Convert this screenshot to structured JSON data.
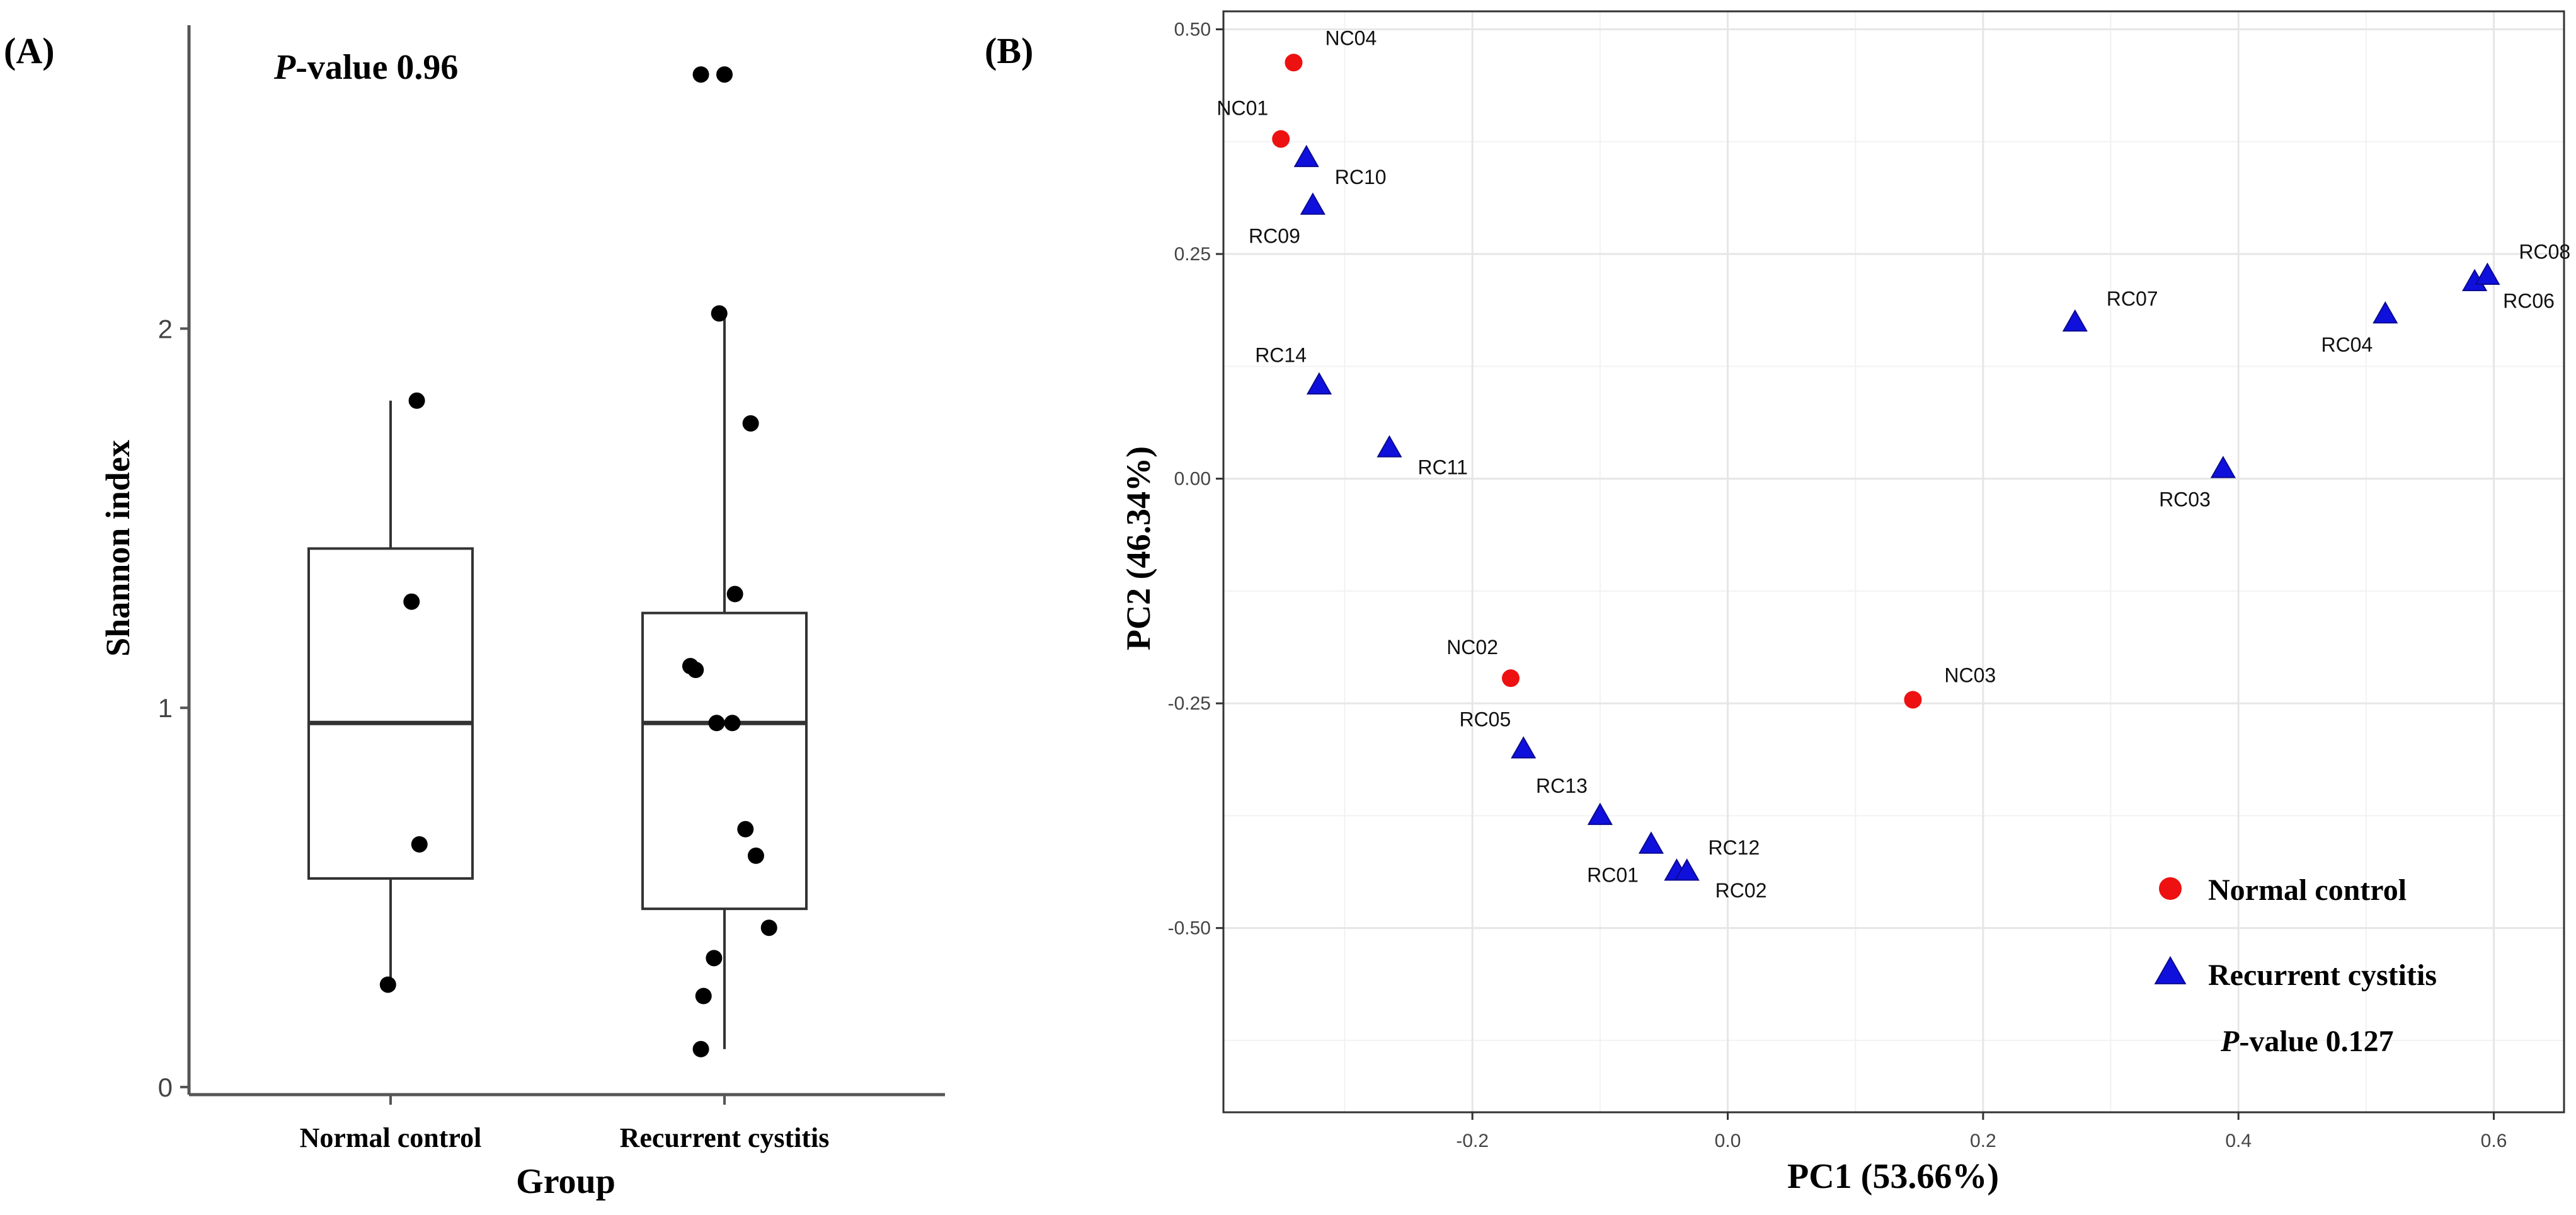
{
  "chart_data": [
    {
      "panel_label": "(A)",
      "type": "box",
      "annotation": {
        "italic": "P",
        "rest": "-value 0.96"
      },
      "xlabel": "Group",
      "ylabel": "Shannon index",
      "categories": [
        "Normal control",
        "Recurrent cystitis"
      ],
      "y_ticks": [
        0,
        1,
        2
      ],
      "ylim": [
        -0.02,
        2.8
      ],
      "boxes": [
        {
          "category": "Normal control",
          "whisker_low": 0.27,
          "q1": 0.55,
          "median": 0.96,
          "q3": 1.42,
          "whisker_high": 1.81
        },
        {
          "category": "Recurrent cystitis",
          "whisker_low": 0.1,
          "q1": 0.47,
          "median": 0.96,
          "q3": 1.25,
          "whisker_high": 2.05
        }
      ],
      "points": [
        {
          "category": "Normal control",
          "jitter": 0.1,
          "y": 1.81
        },
        {
          "category": "Normal control",
          "jitter": 0.08,
          "y": 1.28
        },
        {
          "category": "Normal control",
          "jitter": 0.11,
          "y": 0.64
        },
        {
          "category": "Normal control",
          "jitter": -0.01,
          "y": 0.27
        },
        {
          "category": "Recurrent cystitis",
          "jitter": -0.09,
          "y": 2.67
        },
        {
          "category": "Recurrent cystitis",
          "jitter": 0.0,
          "y": 2.67
        },
        {
          "category": "Recurrent cystitis",
          "jitter": -0.02,
          "y": 2.04
        },
        {
          "category": "Recurrent cystitis",
          "jitter": 0.1,
          "y": 1.75
        },
        {
          "category": "Recurrent cystitis",
          "jitter": 0.04,
          "y": 1.3
        },
        {
          "category": "Recurrent cystitis",
          "jitter": -0.13,
          "y": 1.11
        },
        {
          "category": "Recurrent cystitis",
          "jitter": -0.11,
          "y": 1.1
        },
        {
          "category": "Recurrent cystitis",
          "jitter": -0.03,
          "y": 0.96
        },
        {
          "category": "Recurrent cystitis",
          "jitter": 0.03,
          "y": 0.96
        },
        {
          "category": "Recurrent cystitis",
          "jitter": 0.08,
          "y": 0.68
        },
        {
          "category": "Recurrent cystitis",
          "jitter": 0.12,
          "y": 0.61
        },
        {
          "category": "Recurrent cystitis",
          "jitter": 0.17,
          "y": 0.42
        },
        {
          "category": "Recurrent cystitis",
          "jitter": -0.04,
          "y": 0.34
        },
        {
          "category": "Recurrent cystitis",
          "jitter": -0.08,
          "y": 0.24
        },
        {
          "category": "Recurrent cystitis",
          "jitter": -0.09,
          "y": 0.1
        }
      ]
    },
    {
      "panel_label": "(B)",
      "type": "scatter",
      "xlabel": "PC1 (53.66%)",
      "ylabel": "PC2 (46.34%)",
      "xlim": [
        -0.395,
        0.655
      ],
      "ylim": [
        -0.705,
        0.52
      ],
      "x_ticks": [
        -0.2,
        0.0,
        0.2,
        0.4,
        0.6
      ],
      "x_tick_labels": [
        "-0.2",
        "0.0",
        "0.2",
        "0.4",
        "0.6"
      ],
      "y_ticks": [
        -0.5,
        -0.25,
        0.0,
        0.25,
        0.5
      ],
      "y_tick_labels": [
        "-0.50",
        "-0.25",
        "0.00",
        "0.25",
        "0.50"
      ],
      "grid": true,
      "annotation": {
        "italic": "P",
        "rest": "-value 0.127"
      },
      "legend": {
        "position": "bottom-right",
        "entries": [
          {
            "name": "Normal control",
            "shape": "circle",
            "color": "#ee1111"
          },
          {
            "name": "Recurrent cystitis",
            "shape": "triangle",
            "color": "#1010dd"
          }
        ]
      },
      "series": [
        {
          "name": "Normal control",
          "points": [
            {
              "label": "NC04",
              "x": -0.34,
              "y": 0.463,
              "label_pos": "top-right"
            },
            {
              "label": "NC01",
              "x": -0.35,
              "y": 0.378,
              "label_pos": "top-left"
            },
            {
              "label": "NC02",
              "x": -0.17,
              "y": -0.222,
              "label_pos": "top-left"
            },
            {
              "label": "NC03",
              "x": 0.145,
              "y": -0.246,
              "label_pos": "top-right"
            }
          ]
        },
        {
          "name": "Recurrent cystitis",
          "points": [
            {
              "label": "RC10",
              "x": -0.33,
              "y": 0.356,
              "label_pos": "bottom-right"
            },
            {
              "label": "RC09",
              "x": -0.325,
              "y": 0.303,
              "label_pos": "bottom-left"
            },
            {
              "label": "RC14",
              "x": -0.32,
              "y": 0.103,
              "label_pos": "top-left"
            },
            {
              "label": "RC11",
              "x": -0.265,
              "y": 0.033,
              "label_pos": "bottom-right"
            },
            {
              "label": "RC05",
              "x": -0.16,
              "y": -0.302,
              "label_pos": "top-left"
            },
            {
              "label": "RC13",
              "x": -0.1,
              "y": -0.376,
              "label_pos": "top-left"
            },
            {
              "label": "RC01",
              "x": -0.06,
              "y": -0.408,
              "label_pos": "bottom-left"
            },
            {
              "label": "RC12",
              "x": -0.04,
              "y": -0.438,
              "label_pos": "top-right"
            },
            {
              "label": "RC02",
              "x": -0.032,
              "y": -0.438,
              "label_pos": "bottom-right"
            },
            {
              "label": "RC07",
              "x": 0.272,
              "y": 0.173,
              "label_pos": "top-right"
            },
            {
              "label": "RC03",
              "x": 0.388,
              "y": 0.01,
              "label_pos": "bottom-left"
            },
            {
              "label": "RC04",
              "x": 0.515,
              "y": 0.182,
              "label_pos": "bottom-left"
            },
            {
              "label": "RC06",
              "x": 0.585,
              "y": 0.218,
              "label_pos": "bottom-right"
            },
            {
              "label": "RC08",
              "x": 0.595,
              "y": 0.225,
              "label_pos": "top-right"
            }
          ]
        }
      ]
    }
  ]
}
